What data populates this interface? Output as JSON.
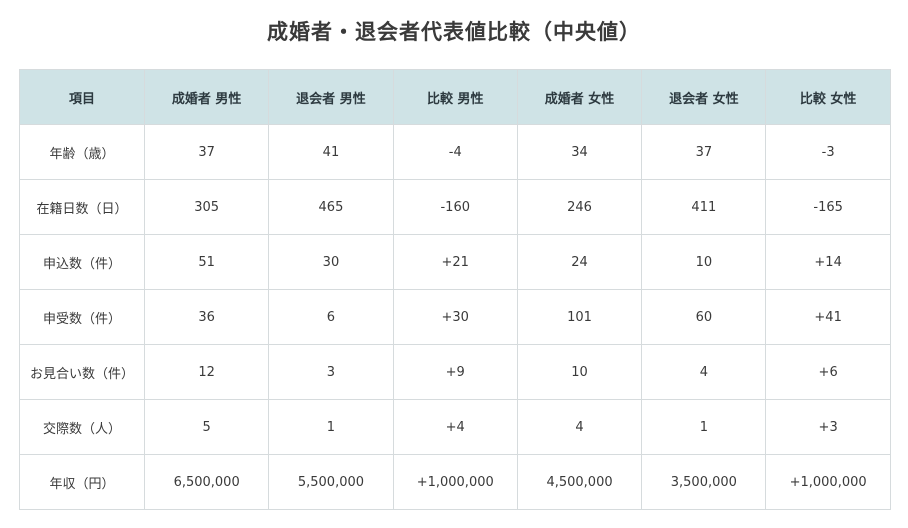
{
  "title": "成婚者・退会者代表値比較（中央値）",
  "chart_data": {
    "type": "table",
    "title": "成婚者・退会者代表値比較（中央値）",
    "columns": [
      "項目",
      "成婚者 男性",
      "退会者 男性",
      "比較 男性",
      "成婚者 女性",
      "退会者 女性",
      "比較 女性"
    ],
    "rows": [
      [
        "年齢（歳）",
        "37",
        "41",
        "-4",
        "34",
        "37",
        "-3"
      ],
      [
        "在籍日数（日）",
        "305",
        "465",
        "-160",
        "246",
        "411",
        "-165"
      ],
      [
        "申込数（件）",
        "51",
        "30",
        "+21",
        "24",
        "10",
        "+14"
      ],
      [
        "申受数（件）",
        "36",
        "6",
        "+30",
        "101",
        "60",
        "+41"
      ],
      [
        "お見合い数（件）",
        "12",
        "3",
        "+9",
        "10",
        "4",
        "+6"
      ],
      [
        "交際数（人）",
        "5",
        "1",
        "+4",
        "4",
        "1",
        "+3"
      ],
      [
        "年収（円）",
        "6,500,000",
        "5,500,000",
        "+1,000,000",
        "4,500,000",
        "3,500,000",
        "+1,000,000"
      ]
    ]
  },
  "colors": {
    "header_bg": "#cfe3e6",
    "border": "#d6dbdd"
  }
}
